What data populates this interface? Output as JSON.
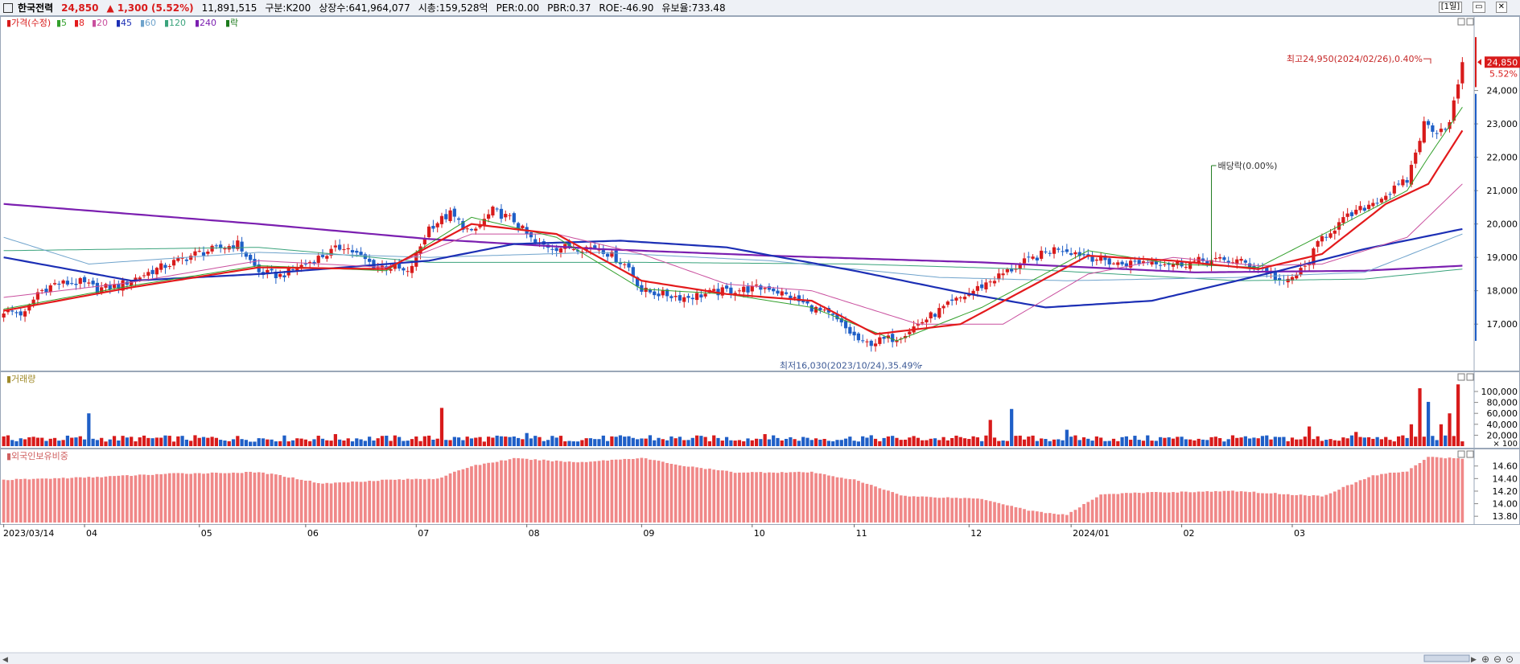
{
  "title_bar": {
    "name": "한국전력",
    "price": "24,850",
    "change": "▲ 1,300 (5.52%)",
    "volume": "11,891,515",
    "category": "구분:K200",
    "listed": "상장수:641,964,077",
    "market_cap": "시총:159,528억",
    "per": "PER:0.00",
    "pbr": "PBR:0.37",
    "roe": "ROE:-46.90",
    "reserve": "유보율:733.48",
    "period_button": "[1일]",
    "minimize": "▭",
    "close": "✕"
  },
  "colors": {
    "up": "#d81b1b",
    "down": "#1f5fc7",
    "ma5": "#33a02c",
    "ma8": "#e31a1c",
    "ma20": "#c94f9e",
    "ma45": "#1c2fb5",
    "ma60": "#6fa3cc",
    "ma120": "#3aa37c",
    "ma240": "#7b1fb0",
    "foreign": "#f08888"
  },
  "chart_data": [
    {
      "type": "candlestick",
      "panel": "price",
      "legend": [
        {
          "label": "▮가격(수정)",
          "color": "#d81b1b"
        },
        {
          "label": "▮5",
          "color": "#33a02c"
        },
        {
          "label": "▮8",
          "color": "#e31a1c"
        },
        {
          "label": "▮20",
          "color": "#c94f9e"
        },
        {
          "label": "▮45",
          "color": "#1c2fb5"
        },
        {
          "label": "▮60",
          "color": "#6fa3cc"
        },
        {
          "label": "▮120",
          "color": "#3aa37c"
        },
        {
          "label": "▮240",
          "color": "#7b1fb0"
        },
        {
          "label": "▮락",
          "color": "#1b7a1b"
        }
      ],
      "y_ticks": [
        "24,000",
        "23,000",
        "22,000",
        "21,000",
        "20,000",
        "19,000",
        "18,000",
        "17,000"
      ],
      "y_tick_values": [
        24000,
        23000,
        22000,
        21000,
        20000,
        19000,
        18000,
        17000
      ],
      "ylim": [
        15800,
        25700
      ],
      "price_label": "24,850",
      "price_pct": "5.52%",
      "high_annotation": "최고24,950(2024/02/26),0.40%",
      "low_annotation": "최저16,030(2023/10/24),35.49%",
      "dividend_annotation": "배당락(0.00%)",
      "anchors": [
        [
          0,
          17400
        ],
        [
          5,
          17300
        ],
        [
          8,
          17950
        ],
        [
          12,
          18200
        ],
        [
          18,
          18250
        ],
        [
          22,
          18050
        ],
        [
          27,
          18150
        ],
        [
          35,
          18600
        ],
        [
          45,
          19100
        ],
        [
          50,
          19250
        ],
        [
          55,
          19400
        ],
        [
          60,
          18550
        ],
        [
          65,
          18450
        ],
        [
          70,
          18750
        ],
        [
          75,
          19050
        ],
        [
          80,
          19350
        ],
        [
          87,
          18750
        ],
        [
          92,
          18700
        ],
        [
          95,
          18500
        ],
        [
          100,
          19900
        ],
        [
          105,
          20300
        ],
        [
          110,
          19700
        ],
        [
          115,
          20400
        ],
        [
          120,
          20100
        ],
        [
          125,
          19400
        ],
        [
          130,
          19300
        ],
        [
          140,
          19300
        ],
        [
          147,
          18700
        ],
        [
          150,
          18000
        ],
        [
          160,
          17800
        ],
        [
          165,
          17900
        ],
        [
          170,
          18000
        ],
        [
          180,
          18100
        ],
        [
          185,
          17800
        ],
        [
          190,
          17500
        ],
        [
          195,
          17200
        ],
        [
          202,
          16400
        ],
        [
          210,
          16600
        ],
        [
          220,
          17400
        ],
        [
          232,
          18300
        ],
        [
          240,
          18850
        ],
        [
          248,
          19300
        ],
        [
          256,
          19000
        ],
        [
          262,
          18800
        ],
        [
          270,
          18900
        ],
        [
          276,
          18800
        ],
        [
          282,
          18900
        ],
        [
          290,
          18900
        ],
        [
          297,
          18600
        ],
        [
          301,
          18200
        ],
        [
          306,
          18700
        ],
        [
          310,
          19600
        ],
        [
          316,
          20200
        ],
        [
          320,
          20500
        ],
        [
          326,
          20950
        ],
        [
          330,
          21300
        ],
        [
          334,
          23000
        ],
        [
          337,
          22800
        ],
        [
          340,
          23000
        ],
        [
          343,
          24850
        ]
      ],
      "ma_series": [
        {
          "key": "ma240",
          "width": 2.2,
          "anchors": [
            [
              0,
              20600
            ],
            [
              60,
              20000
            ],
            [
              100,
              19550
            ],
            [
              140,
              19250
            ],
            [
              180,
              19050
            ],
            [
              230,
              18850
            ],
            [
              280,
              18550
            ],
            [
              320,
              18600
            ],
            [
              343,
              18750
            ]
          ]
        },
        {
          "key": "ma120",
          "width": 1,
          "anchors": [
            [
              0,
              19200
            ],
            [
              60,
              19300
            ],
            [
              100,
              18850
            ],
            [
              150,
              18850
            ],
            [
              200,
              18800
            ],
            [
              240,
              18650
            ],
            [
              290,
              18300
            ],
            [
              320,
              18350
            ],
            [
              343,
              18650
            ]
          ]
        },
        {
          "key": "ma60",
          "width": 1,
          "anchors": [
            [
              0,
              19600
            ],
            [
              20,
              18800
            ],
            [
              60,
              19150
            ],
            [
              100,
              19000
            ],
            [
              140,
              19150
            ],
            [
              180,
              18900
            ],
            [
              220,
              18400
            ],
            [
              250,
              18300
            ],
            [
              290,
              18400
            ],
            [
              320,
              18550
            ],
            [
              343,
              19700
            ]
          ]
        },
        {
          "key": "ma45",
          "width": 2.2,
          "anchors": [
            [
              0,
              19000
            ],
            [
              30,
              18300
            ],
            [
              60,
              18500
            ],
            [
              100,
              18900
            ],
            [
              120,
              19400
            ],
            [
              145,
              19500
            ],
            [
              170,
              19300
            ],
            [
              200,
              18600
            ],
            [
              225,
              17950
            ],
            [
              245,
              17500
            ],
            [
              270,
              17700
            ],
            [
              300,
              18600
            ],
            [
              320,
              19250
            ],
            [
              343,
              19850
            ]
          ]
        },
        {
          "key": "ma20",
          "width": 1,
          "anchors": [
            [
              0,
              17800
            ],
            [
              30,
              18250
            ],
            [
              60,
              18900
            ],
            [
              90,
              18700
            ],
            [
              110,
              19700
            ],
            [
              130,
              19700
            ],
            [
              150,
              19100
            ],
            [
              170,
              18200
            ],
            [
              190,
              18000
            ],
            [
              215,
              17000
            ],
            [
              235,
              17000
            ],
            [
              255,
              18500
            ],
            [
              275,
              19000
            ],
            [
              295,
              18750
            ],
            [
              310,
              18800
            ],
            [
              330,
              19600
            ],
            [
              343,
              21200
            ]
          ]
        },
        {
          "key": "ma5",
          "width": 1,
          "anchors": [
            [
              0,
              17450
            ],
            [
              30,
              18150
            ],
            [
              60,
              18750
            ],
            [
              90,
              18600
            ],
            [
              110,
              20200
            ],
            [
              130,
              19600
            ],
            [
              150,
              18050
            ],
            [
              170,
              17900
            ],
            [
              190,
              17500
            ],
            [
              210,
              16500
            ],
            [
              230,
              17500
            ],
            [
              255,
              19200
            ],
            [
              275,
              18800
            ],
            [
              295,
              18700
            ],
            [
              315,
              20000
            ],
            [
              330,
              21000
            ],
            [
              335,
              22000
            ],
            [
              343,
              23500
            ]
          ]
        },
        {
          "key": "ma8",
          "width": 2.2,
          "anchors": [
            [
              0,
              17400
            ],
            [
              30,
              18100
            ],
            [
              60,
              18700
            ],
            [
              90,
              18650
            ],
            [
              110,
              20000
            ],
            [
              130,
              19700
            ],
            [
              150,
              18300
            ],
            [
              170,
              17900
            ],
            [
              190,
              17700
            ],
            [
              205,
              16700
            ],
            [
              225,
              17000
            ],
            [
              255,
              19050
            ],
            [
              275,
              18900
            ],
            [
              295,
              18650
            ],
            [
              310,
              19100
            ],
            [
              325,
              20600
            ],
            [
              335,
              21200
            ],
            [
              343,
              22800
            ]
          ]
        }
      ],
      "dividend_index": 284
    },
    {
      "type": "bar",
      "panel": "volume",
      "legend": "▮거래량",
      "y_ticks": [
        "100,000",
        "80,000",
        "60,000",
        "40,000",
        "20,000"
      ],
      "y_tick_values": [
        100000,
        80000,
        60000,
        40000,
        20000
      ],
      "unit": "× 100",
      "ylim": [
        0,
        125000
      ],
      "spikes": [
        [
          20,
          60000
        ],
        [
          78,
          22000
        ],
        [
          103,
          70000
        ],
        [
          123,
          24000
        ],
        [
          152,
          20000
        ],
        [
          179,
          22000
        ],
        [
          202,
          18000
        ],
        [
          232,
          48000
        ],
        [
          237,
          68000
        ],
        [
          250,
          30000
        ],
        [
          293,
          14000
        ],
        [
          307,
          36000
        ],
        [
          318,
          26000
        ],
        [
          331,
          40000
        ],
        [
          333,
          106000
        ],
        [
          335,
          81000
        ],
        [
          338,
          40000
        ],
        [
          340,
          60000
        ],
        [
          342,
          113000
        ]
      ]
    },
    {
      "type": "bar",
      "panel": "foreign",
      "legend": "▮외국인보유비중",
      "y_ticks": [
        "14.60",
        "14.40",
        "14.20",
        "14.00",
        "13.80"
      ],
      "y_tick_values": [
        14.6,
        14.4,
        14.2,
        14.0,
        13.8
      ],
      "ylim": [
        13.7,
        14.75
      ],
      "anchors": [
        [
          0,
          14.38
        ],
        [
          20,
          14.42
        ],
        [
          40,
          14.48
        ],
        [
          60,
          14.5
        ],
        [
          65,
          14.45
        ],
        [
          75,
          14.32
        ],
        [
          90,
          14.38
        ],
        [
          102,
          14.4
        ],
        [
          110,
          14.6
        ],
        [
          120,
          14.72
        ],
        [
          135,
          14.66
        ],
        [
          150,
          14.73
        ],
        [
          160,
          14.6
        ],
        [
          172,
          14.5
        ],
        [
          190,
          14.5
        ],
        [
          200,
          14.38
        ],
        [
          212,
          14.12
        ],
        [
          230,
          14.08
        ],
        [
          242,
          13.88
        ],
        [
          250,
          13.82
        ],
        [
          258,
          14.15
        ],
        [
          270,
          14.18
        ],
        [
          290,
          14.2
        ],
        [
          302,
          14.15
        ],
        [
          310,
          14.12
        ],
        [
          322,
          14.45
        ],
        [
          330,
          14.52
        ],
        [
          335,
          14.74
        ],
        [
          343,
          14.72
        ]
      ]
    }
  ],
  "x_axis": {
    "labels": [
      "2023/03/14",
      "04",
      "05",
      "06",
      "07",
      "08",
      "09",
      "10",
      "11",
      "12",
      "2024/01",
      "02",
      "03"
    ],
    "label_indices": [
      0,
      19,
      46,
      71,
      97,
      123,
      150,
      176,
      200,
      227,
      251,
      277,
      303
    ]
  },
  "bottom_controls": {
    "scroll_left": "◀",
    "scroll_right": "▶",
    "zoom_in": "⊕",
    "zoom_out": "⊖",
    "zoom_reset": "⊙"
  }
}
